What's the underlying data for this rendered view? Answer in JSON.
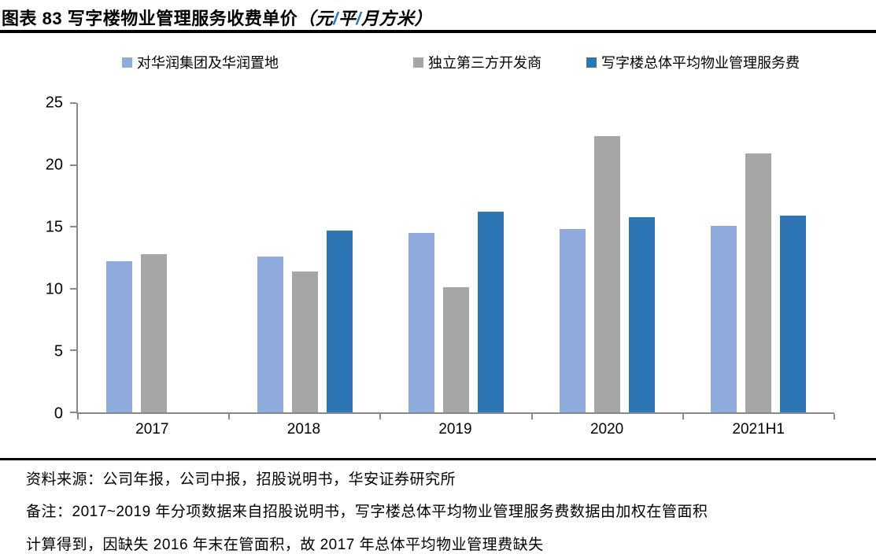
{
  "header": {
    "title_main": "图表 83 写字楼物业管理服务收费单价",
    "title_unit": "（元/平/月方米）",
    "unit_slash_color": "#2E75B6"
  },
  "chart_data": {
    "type": "bar",
    "categories": [
      "2017",
      "2018",
      "2019",
      "2020",
      "2021H1"
    ],
    "series": [
      {
        "name": "对华润集团及华润置地",
        "color": "#8FAADC",
        "values": [
          12.2,
          12.6,
          14.5,
          14.8,
          15.1
        ]
      },
      {
        "name": "独立第三方开发商",
        "color": "#A6A6A6",
        "values": [
          12.8,
          11.4,
          10.1,
          22.3,
          20.9
        ]
      },
      {
        "name": "写字楼总体平均物业管理服务费",
        "color": "#2E75B6",
        "values": [
          null,
          14.7,
          16.2,
          15.8,
          15.9
        ]
      }
    ],
    "ylim": [
      0,
      25
    ],
    "yticks": [
      0,
      5,
      10,
      15,
      20,
      25
    ],
    "legend_position": "top",
    "grid": false
  },
  "footer": {
    "source": "资料来源：公司年报，公司中报，招股说明书，华安证券研究所",
    "remark_lines": [
      "备注：2017~2019 年分项数据来自招股说明书，写字楼总体平均物业管理服务费数据由加权在管面积",
      "计算得到，因缺失 2016 年末在管面积，故 2017 年总体平均物业管理费缺失"
    ]
  }
}
